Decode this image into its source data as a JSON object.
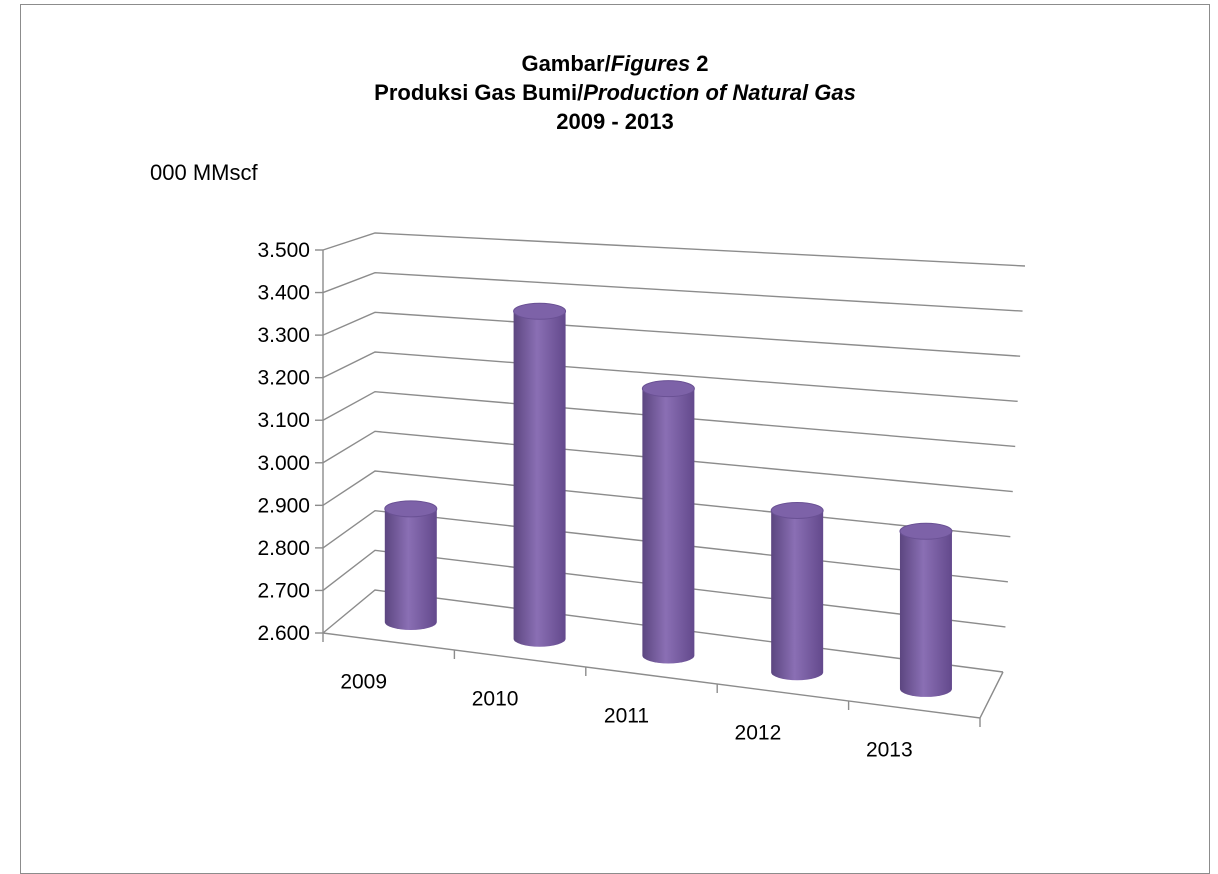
{
  "title": {
    "line1_prefix": "Gambar/",
    "line1_italic": "Figures",
    "line1_suffix": " 2",
    "line2_prefix": "Produksi Gas Bumi/",
    "line2_italic": "Production of Natural Gas",
    "line3": "2009 - 2013"
  },
  "unit_label": "000 MMscf",
  "colors": {
    "bar": "#8064a2",
    "grid": "#8c8c8c"
  },
  "chart_data": {
    "type": "bar",
    "style": "3d-cylinder",
    "categories": [
      "2009",
      "2010",
      "2011",
      "2012",
      "2013"
    ],
    "values": [
      2880,
      3410,
      3260,
      3000,
      2990
    ],
    "ylabel": "000 MMscf",
    "ylim": [
      2600,
      3500
    ],
    "ytick_labels": [
      "2.600",
      "2.700",
      "2.800",
      "2.900",
      "3.000",
      "3.100",
      "3.200",
      "3.300",
      "3.400",
      "3.500"
    ],
    "grid": true,
    "legend": "none"
  }
}
